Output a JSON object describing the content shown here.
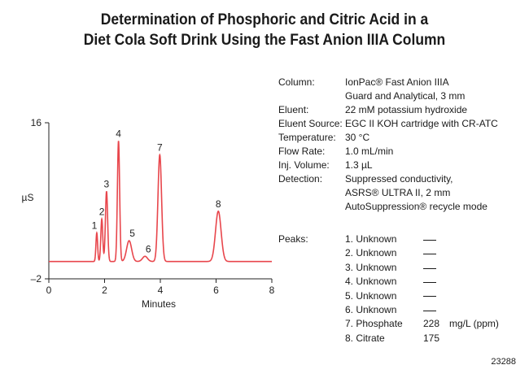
{
  "chart_data": {
    "type": "line",
    "title_line1": "Determination of Phosphoric and Citric Acid in a",
    "title_line2": "Diet Cola Soft Drink Using the Fast Anion IIIA Column",
    "xlabel": "Minutes",
    "ylabel": "µS",
    "xlim": [
      0,
      8
    ],
    "ylim": [
      -2,
      16
    ],
    "x_ticks": [
      "0",
      "2",
      "4",
      "6",
      "8"
    ],
    "y_ticks": [
      "16",
      "–2"
    ],
    "series_color": "#e8464c",
    "baseline": 0,
    "peaks": [
      {
        "label": "1",
        "t": 1.72,
        "h": 3.3,
        "w": 0.03
      },
      {
        "label": "2",
        "t": 1.9,
        "h": 4.9,
        "w": 0.035
      },
      {
        "label": "3",
        "t": 2.07,
        "h": 8.1,
        "w": 0.04
      },
      {
        "label": "4",
        "t": 2.5,
        "h": 13.9,
        "w": 0.04
      },
      {
        "label": "5",
        "t": 2.88,
        "h": 2.4,
        "w": 0.09
      },
      {
        "label": "6",
        "t": 3.45,
        "h": 0.6,
        "w": 0.09
      },
      {
        "label": "7",
        "t": 3.98,
        "h": 12.3,
        "w": 0.065
      },
      {
        "label": "8",
        "t": 6.08,
        "h": 5.8,
        "w": 0.1
      }
    ]
  },
  "conditions": [
    {
      "key": "Column:",
      "lines": [
        "IonPac® Fast Anion IIIA",
        "Guard and Analytical, 3 mm"
      ]
    },
    {
      "key": "Eluent:",
      "lines": [
        "22 mM potassium hydroxide"
      ]
    },
    {
      "key": "Eluent Source:",
      "lines": [
        "EGC II KOH cartridge with CR-ATC"
      ]
    },
    {
      "key": "Temperature:",
      "lines": [
        "30 °C"
      ]
    },
    {
      "key": "Flow Rate:",
      "lines": [
        "1.0 mL/min"
      ]
    },
    {
      "key": "Inj. Volume:",
      "lines": [
        "1.3 µL"
      ]
    },
    {
      "key": "Detection:",
      "lines": [
        "Suppressed conductivity,",
        "ASRS® ULTRA II, 2 mm",
        "AutoSuppression® recycle mode"
      ]
    }
  ],
  "peaks_table": {
    "label": "Peaks:",
    "unit": "mg/L (ppm)",
    "rows": [
      {
        "name": "1. Unknown",
        "amount": "",
        "dash": true
      },
      {
        "name": "2. Unknown",
        "amount": "",
        "dash": true
      },
      {
        "name": "3. Unknown",
        "amount": "",
        "dash": true
      },
      {
        "name": "4. Unknown",
        "amount": "",
        "dash": true
      },
      {
        "name": "5. Unknown",
        "amount": "",
        "dash": true
      },
      {
        "name": "6. Unknown",
        "amount": "",
        "dash": true
      },
      {
        "name": "7. Phosphate",
        "amount": "228",
        "dash": false
      },
      {
        "name": "8. Citrate",
        "amount": "175",
        "dash": false
      }
    ]
  },
  "figure_number": "23288"
}
